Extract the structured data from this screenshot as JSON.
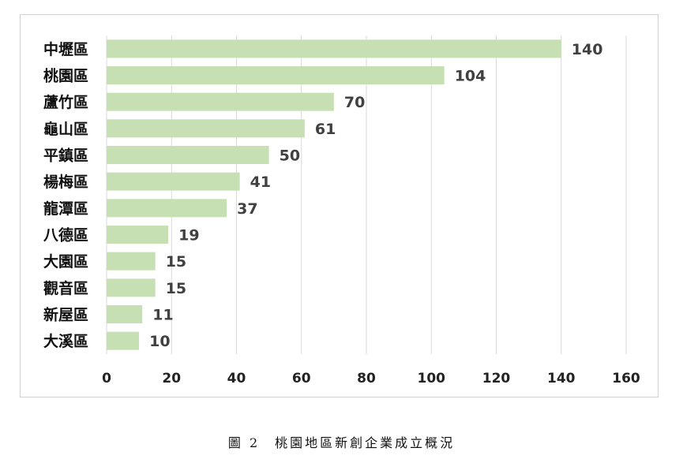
{
  "chart_data": {
    "type": "bar",
    "orientation": "horizontal",
    "categories": [
      "中壢區",
      "桃園區",
      "蘆竹區",
      "龜山區",
      "平鎮區",
      "楊梅區",
      "龍潭區",
      "八德區",
      "大園區",
      "觀音區",
      "新屋區",
      "大溪區"
    ],
    "values": [
      140,
      104,
      70,
      61,
      50,
      41,
      37,
      19,
      15,
      15,
      11,
      10
    ],
    "x_ticks": [
      0,
      20,
      40,
      60,
      80,
      100,
      120,
      140,
      160
    ],
    "xlim": [
      0,
      160
    ],
    "grid": "vertical",
    "legend": "none",
    "bar_color": "#c6e0b4",
    "title": "",
    "xlabel": "",
    "ylabel": ""
  },
  "caption": "圖 2　桃園地區新創企業成立概況"
}
